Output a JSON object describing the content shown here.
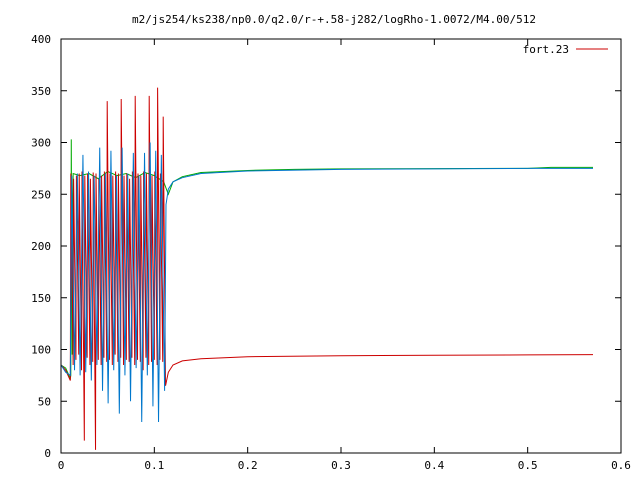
{
  "chart_data": {
    "type": "line",
    "title": "m2/js254/ks238/np0.0/q2.0/r-+.58-j282/logRho-1.0072/M4.00/512",
    "xlabel": "",
    "ylabel": "",
    "xlim": [
      0,
      0.6
    ],
    "ylim": [
      0,
      400
    ],
    "x_ticks": [
      0,
      0.1,
      0.2,
      0.3,
      0.4,
      0.5,
      0.6
    ],
    "x_tick_labels": [
      "0",
      "0.1",
      "0.2",
      "0.3",
      "0.4",
      "0.5",
      "0.6"
    ],
    "y_ticks": [
      0,
      50,
      100,
      150,
      200,
      250,
      300,
      350,
      400
    ],
    "y_tick_labels": [
      "0",
      "50",
      "100",
      "150",
      "200",
      "250",
      "300",
      "350",
      "400"
    ],
    "grid": false,
    "legend_position": "top-right",
    "legend_label": "fort.23",
    "colors": {
      "red": "#cc0000",
      "green": "#00aa00",
      "blue": "#0077cc",
      "axis": "#000000"
    },
    "series": [
      {
        "name": "fort.23",
        "color": "#cc0000",
        "x": [
          0,
          0.005,
          0.01,
          0.0105,
          0.013,
          0.0135,
          0.016,
          0.0165,
          0.019,
          0.0195,
          0.022,
          0.0225,
          0.025,
          0.0255,
          0.028,
          0.0285,
          0.031,
          0.0315,
          0.034,
          0.0345,
          0.037,
          0.0375,
          0.04,
          0.0405,
          0.043,
          0.0435,
          0.046,
          0.0465,
          0.049,
          0.0495,
          0.052,
          0.0525,
          0.055,
          0.0555,
          0.058,
          0.0585,
          0.061,
          0.0615,
          0.064,
          0.0645,
          0.067,
          0.0675,
          0.07,
          0.0705,
          0.073,
          0.0735,
          0.076,
          0.0765,
          0.079,
          0.0795,
          0.082,
          0.0825,
          0.085,
          0.0855,
          0.088,
          0.0885,
          0.091,
          0.0915,
          0.094,
          0.0945,
          0.097,
          0.0975,
          0.1,
          0.1005,
          0.103,
          0.1035,
          0.106,
          0.1065,
          0.109,
          0.1095,
          0.112,
          0.115,
          0.12,
          0.13,
          0.15,
          0.2,
          0.3,
          0.4,
          0.5,
          0.57
        ],
        "y": [
          85,
          80,
          70,
          270,
          85,
          265,
          90,
          268,
          95,
          270,
          80,
          272,
          12,
          268,
          92,
          270,
          85,
          265,
          88,
          271,
          3,
          270,
          90,
          265,
          85,
          268,
          92,
          272,
          88,
          340,
          90,
          270,
          85,
          268,
          95,
          272,
          88,
          270,
          92,
          342,
          85,
          268,
          90,
          270,
          88,
          265,
          92,
          272,
          85,
          345,
          90,
          270,
          88,
          268,
          80,
          272,
          92,
          270,
          85,
          345,
          88,
          268,
          90,
          272,
          85,
          353,
          90,
          270,
          88,
          325,
          65,
          78,
          85,
          89,
          91,
          93,
          94,
          94.5,
          94.8,
          95
        ]
      },
      {
        "name": "",
        "color": "#00aa00",
        "x": [
          0,
          0.005,
          0.01,
          0.0105,
          0.011,
          0.012,
          0.013,
          0.02,
          0.03,
          0.04,
          0.05,
          0.06,
          0.07,
          0.08,
          0.09,
          0.1,
          0.11,
          0.115,
          0.12,
          0.13,
          0.15,
          0.2,
          0.25,
          0.3,
          0.4,
          0.5,
          0.525,
          0.55,
          0.57
        ],
        "y": [
          85,
          82,
          72,
          75,
          303,
          95,
          270,
          268,
          270,
          265,
          272,
          268,
          270,
          266,
          271,
          268,
          262,
          250,
          262,
          267,
          271,
          273,
          274,
          274.5,
          274.8,
          275,
          276,
          276,
          276
        ]
      },
      {
        "name": "",
        "color": "#0077cc",
        "x": [
          0,
          0.005,
          0.01,
          0.0115,
          0.0145,
          0.0175,
          0.0205,
          0.0235,
          0.0265,
          0.0295,
          0.0325,
          0.0355,
          0.0385,
          0.0415,
          0.0445,
          0.0475,
          0.0505,
          0.0535,
          0.0565,
          0.0595,
          0.0625,
          0.0655,
          0.0685,
          0.0715,
          0.0745,
          0.0775,
          0.0805,
          0.0835,
          0.0865,
          0.0895,
          0.0925,
          0.0955,
          0.0985,
          0.1015,
          0.1045,
          0.1075,
          0.111,
          0.1125,
          0.115,
          0.12,
          0.13,
          0.15,
          0.2,
          0.3,
          0.4,
          0.5,
          0.57
        ],
        "y": [
          85,
          78,
          75,
          268,
          80,
          270,
          75,
          288,
          78,
          272,
          70,
          268,
          85,
          295,
          60,
          270,
          48,
          292,
          80,
          268,
          38,
          295,
          75,
          270,
          50,
          290,
          82,
          268,
          30,
          290,
          75,
          300,
          45,
          292,
          30,
          288,
          60,
          240,
          255,
          262,
          266,
          270,
          272.5,
          274,
          274.5,
          275,
          275
        ]
      }
    ]
  }
}
